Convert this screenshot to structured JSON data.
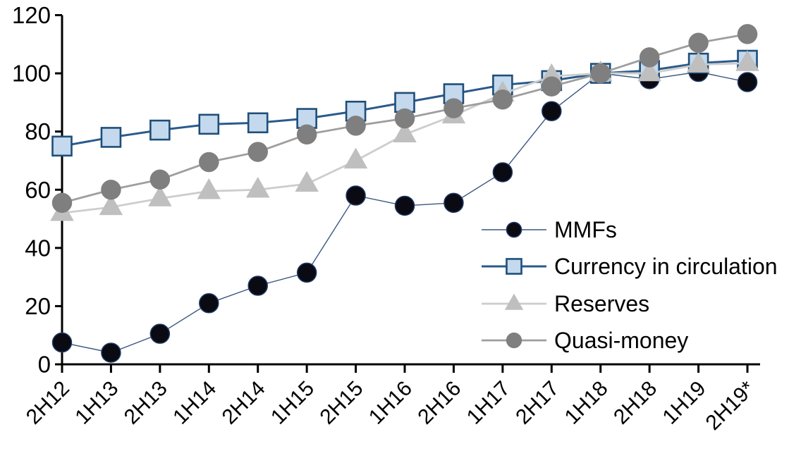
{
  "chart_data": {
    "type": "line",
    "title": "",
    "xlabel": "",
    "ylabel": "",
    "categories": [
      "2H12",
      "1H13",
      "2H13",
      "1H14",
      "2H14",
      "1H15",
      "2H15",
      "1H16",
      "2H16",
      "1H17",
      "2H17",
      "1H18",
      "2H18",
      "1H19",
      "2H19*"
    ],
    "series": [
      {
        "name": "MMFs",
        "marker": "circle",
        "marker_fill": "#0a0a12",
        "marker_stroke": "#1f3864",
        "marker_stroke_width": 1.5,
        "line_color": "#3a5780",
        "line_width": 1.4,
        "marker_size": 13.5,
        "values": [
          7.5,
          4,
          10.5,
          21,
          27,
          31.5,
          58,
          54.5,
          55.5,
          66,
          87,
          100,
          98,
          100.5,
          97
        ]
      },
      {
        "name": "Currency in circulation",
        "marker": "square",
        "marker_fill": "#c4d9ed",
        "marker_stroke": "#1f4e79",
        "marker_stroke_width": 2.6,
        "line_color": "#2a5a8c",
        "line_width": 3,
        "marker_size": 13.5,
        "values": [
          75,
          78,
          80.5,
          82.5,
          83,
          84.5,
          87,
          90,
          93,
          96,
          97.5,
          100,
          101,
          103.5,
          104.5
        ]
      },
      {
        "name": "Reserves",
        "marker": "triangle",
        "marker_fill": "#bfbfbf",
        "marker_stroke": "#bfbfbf",
        "marker_stroke_width": 0.5,
        "line_color": "#cdcdcd",
        "line_width": 2.8,
        "marker_size": 14,
        "values": [
          52,
          54,
          57,
          59.5,
          60,
          62,
          70,
          79,
          85.5,
          93,
          99,
          100,
          100,
          103,
          103.5
        ]
      },
      {
        "name": "Quasi-money",
        "marker": "circle",
        "marker_fill": "#7f7f7f",
        "marker_stroke": "#7f7f7f",
        "marker_stroke_width": 0.5,
        "line_color": "#9e9e9e",
        "line_width": 2.8,
        "marker_size": 14,
        "values": [
          55.5,
          60,
          63.5,
          69.5,
          73,
          79,
          82,
          84.5,
          88,
          91,
          95.5,
          100,
          105.5,
          110.5,
          113.5
        ]
      }
    ],
    "ylim": [
      0,
      120
    ],
    "yticks": [
      0,
      20,
      40,
      60,
      80,
      100,
      120
    ],
    "grid": false,
    "legend_position": "inside-right",
    "legend_labels": [
      "MMFs",
      "Currency in circulation",
      "Reserves",
      "Quasi-money"
    ],
    "axis_color": "#000000"
  }
}
